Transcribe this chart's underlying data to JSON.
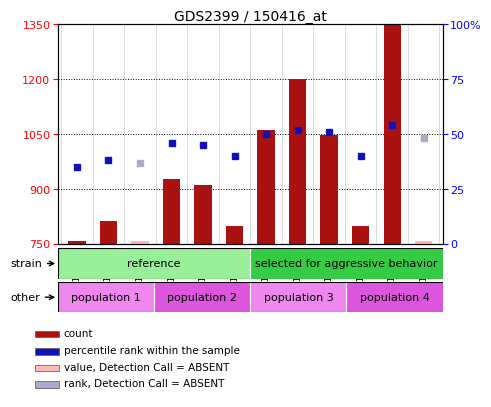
{
  "title": "GDS2399 / 150416_at",
  "samples": [
    "GSM120863",
    "GSM120864",
    "GSM120865",
    "GSM120866",
    "GSM120867",
    "GSM120868",
    "GSM120838",
    "GSM120858",
    "GSM120859",
    "GSM120860",
    "GSM120861",
    "GSM120862"
  ],
  "bar_values": [
    758,
    812,
    758,
    928,
    910,
    800,
    1060,
    1202,
    1048,
    800,
    1348,
    758
  ],
  "bar_absent": [
    false,
    false,
    true,
    false,
    false,
    false,
    false,
    false,
    false,
    false,
    false,
    true
  ],
  "percentile_ranks": [
    35,
    38,
    37,
    46,
    45,
    40,
    50,
    52,
    51,
    40,
    54,
    48
  ],
  "percentile_absent": [
    false,
    false,
    true,
    false,
    false,
    false,
    false,
    false,
    false,
    false,
    false,
    true
  ],
  "ylim_left": [
    750,
    1350
  ],
  "ylim_right": [
    0,
    100
  ],
  "yticks_left": [
    750,
    900,
    1050,
    1200,
    1350
  ],
  "yticks_right": [
    0,
    25,
    50,
    75,
    100
  ],
  "bar_color": "#aa1111",
  "bar_absent_color": "#ffb8b8",
  "dot_color": "#1111bb",
  "dot_absent_color": "#aaaacc",
  "strain_groups": [
    {
      "label": "reference",
      "start": 0,
      "end": 6,
      "color": "#99ee99"
    },
    {
      "label": "selected for aggressive behavior",
      "start": 6,
      "end": 12,
      "color": "#33cc44"
    }
  ],
  "pop_groups": [
    {
      "label": "population 1",
      "start": 0,
      "end": 3,
      "color": "#ee88ee"
    },
    {
      "label": "population 2",
      "start": 3,
      "end": 6,
      "color": "#dd55dd"
    },
    {
      "label": "population 3",
      "start": 6,
      "end": 9,
      "color": "#ee88ee"
    },
    {
      "label": "population 4",
      "start": 9,
      "end": 12,
      "color": "#dd55dd"
    }
  ],
  "legend_items": [
    {
      "label": "count",
      "color": "#aa1111"
    },
    {
      "label": "percentile rank within the sample",
      "color": "#1111bb"
    },
    {
      "label": "value, Detection Call = ABSENT",
      "color": "#ffb8b8"
    },
    {
      "label": "rank, Detection Call = ABSENT",
      "color": "#aaaacc"
    }
  ],
  "bar_width": 0.55
}
